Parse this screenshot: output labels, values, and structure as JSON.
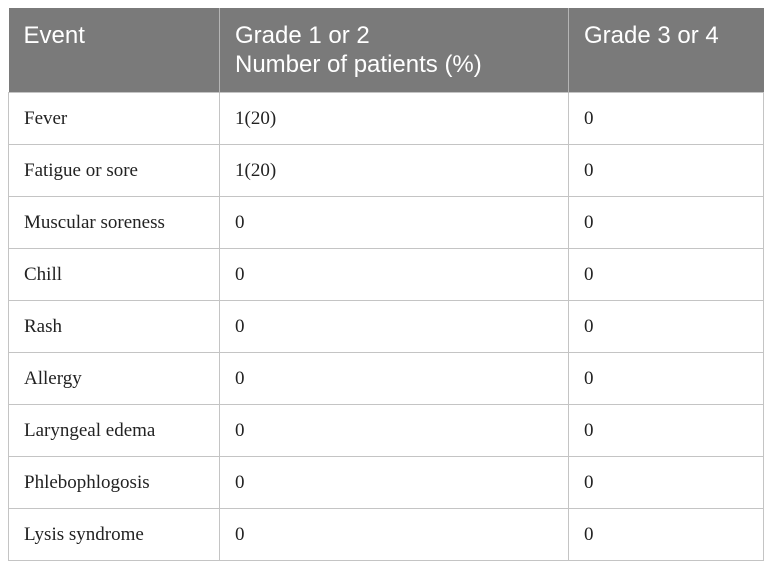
{
  "table": {
    "headers": [
      {
        "lines": [
          "Event"
        ]
      },
      {
        "lines": [
          "Grade 1 or 2",
          "Number of patients (%)"
        ]
      },
      {
        "lines": [
          "Grade 3 or 4"
        ]
      }
    ],
    "rows": [
      [
        "Fever",
        "1(20)",
        "0"
      ],
      [
        "Fatigue or sore",
        "1(20)",
        "0"
      ],
      [
        "Muscular soreness",
        "0",
        "0"
      ],
      [
        "Chill",
        "0",
        "0"
      ],
      [
        "Rash",
        "0",
        "0"
      ],
      [
        "Allergy",
        "0",
        "0"
      ],
      [
        "Laryngeal edema",
        "0",
        "0"
      ],
      [
        "Phlebophlogosis",
        "0",
        "0"
      ],
      [
        "Lysis syndrome",
        "0",
        "0"
      ]
    ]
  },
  "colors": {
    "header_bg": "#7a7a7a",
    "header_text": "#ffffff",
    "grid": "#c4c4c4"
  }
}
